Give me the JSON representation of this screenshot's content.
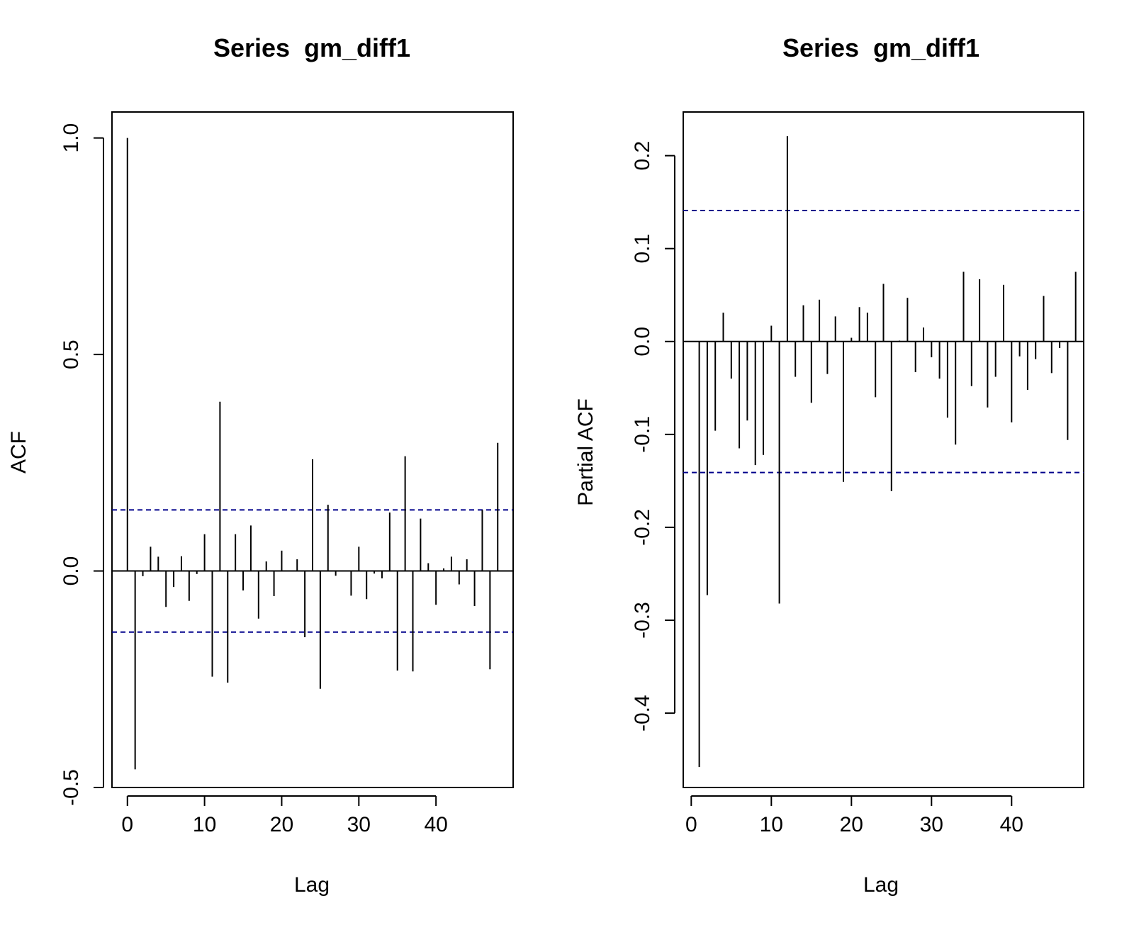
{
  "chart_data": [
    {
      "type": "bar",
      "subtype": "acf",
      "title": "Series  gm_diff1",
      "xlabel": "Lag",
      "ylabel": "ACF",
      "xlim": [
        -2,
        50
      ],
      "ylim": [
        -0.5,
        1.06
      ],
      "xticks": [
        "0",
        "10",
        "20",
        "30",
        "40"
      ],
      "xtick_values": [
        0,
        10,
        20,
        30,
        40
      ],
      "yticks": [
        "-0.5",
        "0.0",
        "0.5",
        "1.0"
      ],
      "ytick_values": [
        -0.5,
        0.0,
        0.5,
        1.0
      ],
      "confidence_bound": 0.141,
      "confidence_color": "#00008B",
      "lags": [
        0,
        1,
        2,
        3,
        4,
        5,
        6,
        7,
        8,
        9,
        10,
        11,
        12,
        13,
        14,
        15,
        16,
        17,
        18,
        19,
        20,
        21,
        22,
        23,
        24,
        25,
        26,
        27,
        28,
        29,
        30,
        31,
        32,
        33,
        34,
        35,
        36,
        37,
        38,
        39,
        40,
        41,
        42,
        43,
        44,
        45,
        46,
        47,
        48
      ],
      "values": [
        1.0,
        -0.458,
        -0.012,
        0.056,
        0.033,
        -0.083,
        -0.037,
        0.034,
        -0.069,
        -0.007,
        0.085,
        -0.244,
        0.391,
        -0.258,
        0.085,
        -0.045,
        0.105,
        -0.11,
        0.022,
        -0.058,
        0.047,
        0.001,
        0.027,
        -0.153,
        0.258,
        -0.272,
        0.153,
        -0.011,
        0.0,
        -0.057,
        0.056,
        -0.065,
        -0.006,
        -0.017,
        0.135,
        -0.23,
        0.265,
        -0.232,
        0.121,
        0.018,
        -0.078,
        0.006,
        0.033,
        -0.031,
        0.027,
        -0.081,
        0.141,
        -0.227,
        0.296
      ]
    },
    {
      "type": "bar",
      "subtype": "pacf",
      "title": "Series  gm_diff1",
      "xlabel": "Lag",
      "ylabel": "Partial ACF",
      "xlim": [
        -1,
        49
      ],
      "ylim": [
        -0.48,
        0.247
      ],
      "xticks": [
        "0",
        "10",
        "20",
        "30",
        "40"
      ],
      "xtick_values": [
        0,
        10,
        20,
        30,
        40
      ],
      "yticks": [
        "-0.4",
        "-0.3",
        "-0.2",
        "-0.1",
        "0.0",
        "0.1",
        "0.2"
      ],
      "ytick_values": [
        -0.4,
        -0.3,
        -0.2,
        -0.1,
        0.0,
        0.1,
        0.2
      ],
      "confidence_bound": 0.141,
      "confidence_color": "#00008B",
      "lags": [
        1,
        2,
        3,
        4,
        5,
        6,
        7,
        8,
        9,
        10,
        11,
        12,
        13,
        14,
        15,
        16,
        17,
        18,
        19,
        20,
        21,
        22,
        23,
        24,
        25,
        26,
        27,
        28,
        29,
        30,
        31,
        32,
        33,
        34,
        35,
        36,
        37,
        38,
        39,
        40,
        41,
        42,
        43,
        44,
        45,
        46,
        47,
        48
      ],
      "values": [
        -0.458,
        -0.273,
        -0.096,
        0.031,
        -0.04,
        -0.115,
        -0.085,
        -0.133,
        -0.122,
        0.017,
        -0.282,
        0.221,
        -0.038,
        0.039,
        -0.066,
        0.045,
        -0.035,
        0.027,
        -0.151,
        0.004,
        0.037,
        0.031,
        -0.06,
        0.062,
        -0.161,
        0.001,
        0.047,
        -0.033,
        0.015,
        -0.017,
        -0.04,
        -0.082,
        -0.111,
        0.075,
        -0.048,
        0.067,
        -0.071,
        -0.038,
        0.061,
        -0.087,
        -0.016,
        -0.052,
        -0.019,
        0.049,
        -0.034,
        -0.007,
        -0.106,
        0.075
      ]
    }
  ]
}
